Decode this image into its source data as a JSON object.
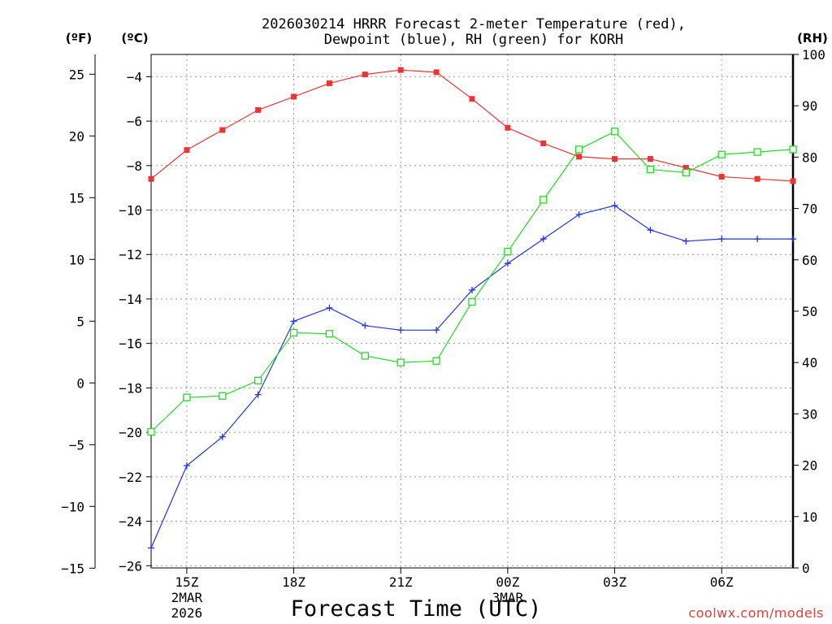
{
  "chart_data": {
    "type": "line",
    "title_line1": "2026030214 HRRR Forecast 2-meter Temperature (red),",
    "title_line2": "Dewpoint (blue), RH (green) for KORH",
    "xlabel": "Forecast Time (UTC)",
    "unit_f": "(ºF)",
    "unit_c": "(ºC)",
    "unit_rh": "(RH)",
    "credit": "coolwx.com/models",
    "hours": [
      14,
      15,
      16,
      17,
      18,
      19,
      20,
      21,
      22,
      23,
      24,
      25,
      26,
      27,
      28,
      29,
      30,
      31,
      32
    ],
    "xlim": [
      14,
      32
    ],
    "x_ticks": [
      {
        "hour": 15,
        "label": "15Z",
        "sub1": "2MAR",
        "sub2": "2026"
      },
      {
        "hour": 18,
        "label": "18Z",
        "sub1": "",
        "sub2": ""
      },
      {
        "hour": 21,
        "label": "21Z",
        "sub1": "",
        "sub2": ""
      },
      {
        "hour": 24,
        "label": "00Z",
        "sub1": "3MAR",
        "sub2": ""
      },
      {
        "hour": 27,
        "label": "03Z",
        "sub1": "",
        "sub2": ""
      },
      {
        "hour": 30,
        "label": "06Z",
        "sub1": "",
        "sub2": ""
      }
    ],
    "celsius_axis": {
      "ylim": [
        -26.1,
        -3.0
      ],
      "ticks": [
        -4,
        -6,
        -8,
        -10,
        -12,
        -14,
        -16,
        -18,
        -20,
        -22,
        -24,
        -26
      ]
    },
    "fahrenheit_axis": {
      "ticks": [
        25,
        20,
        15,
        10,
        5,
        0,
        -5,
        -10,
        -15
      ]
    },
    "rh_axis": {
      "ylim": [
        0,
        100
      ],
      "ticks": [
        100,
        90,
        80,
        70,
        60,
        50,
        40,
        30,
        20,
        10,
        0
      ]
    },
    "series": [
      {
        "name": "Temperature",
        "unit": "C",
        "color": "#ee3333",
        "marker": "filled-square",
        "values": [
          -8.6,
          -7.3,
          -6.4,
          -5.5,
          -4.9,
          -4.3,
          -3.9,
          -3.7,
          -3.8,
          -5.0,
          -6.3,
          -7.0,
          -7.6,
          -7.7,
          -7.7,
          -8.1,
          -8.5,
          -8.6,
          -8.7
        ]
      },
      {
        "name": "Dewpoint",
        "unit": "C",
        "color": "#2233ee",
        "marker": "plus",
        "values": [
          -25.2,
          -21.5,
          -20.2,
          -18.3,
          -15.0,
          -14.4,
          -15.2,
          -15.4,
          -15.4,
          -13.6,
          -12.4,
          -11.3,
          -10.2,
          -9.8,
          -10.9,
          -11.4,
          -11.3,
          -11.3,
          -11.3
        ]
      },
      {
        "name": "RH",
        "unit": "%",
        "color": "#22dd22",
        "marker": "open-square",
        "values": [
          26.5,
          33.2,
          33.5,
          36.5,
          45.8,
          45.6,
          41.3,
          40.0,
          40.3,
          51.8,
          61.6,
          71.7,
          81.5,
          85.0,
          77.6,
          77.0,
          80.5,
          81.0,
          81.5
        ]
      }
    ]
  }
}
